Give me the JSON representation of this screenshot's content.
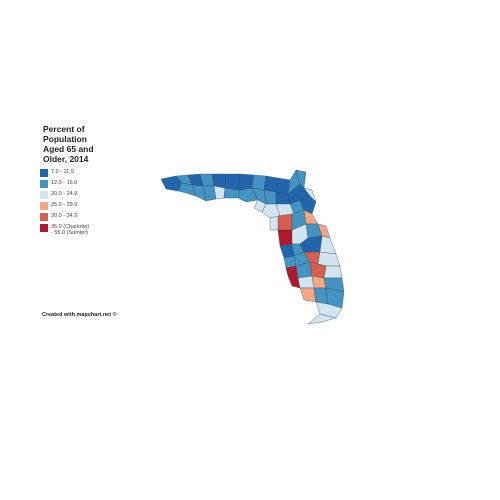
{
  "legend": {
    "title_lines": [
      "Percent of",
      "Population",
      "Aged 65 and",
      "Older, 2014"
    ],
    "items": [
      {
        "label": "7.0 - 11.9",
        "color": "#2166ac"
      },
      {
        "label": "12.0 - 16.0",
        "color": "#4393c3"
      },
      {
        "label": "20.0 - 24.9",
        "color": "#d1e5f0"
      },
      {
        "label": "25.0 - 29.9",
        "color": "#f4a582"
      },
      {
        "label": "30.0 - 34.9",
        "color": "#d6604d"
      },
      {
        "label": "35.0 (Charlotte)",
        "label_extra": "- 55.0 (Sumter)",
        "color": "#b2182b"
      }
    ]
  },
  "credit": "Created with mapchart.net ©"
}
